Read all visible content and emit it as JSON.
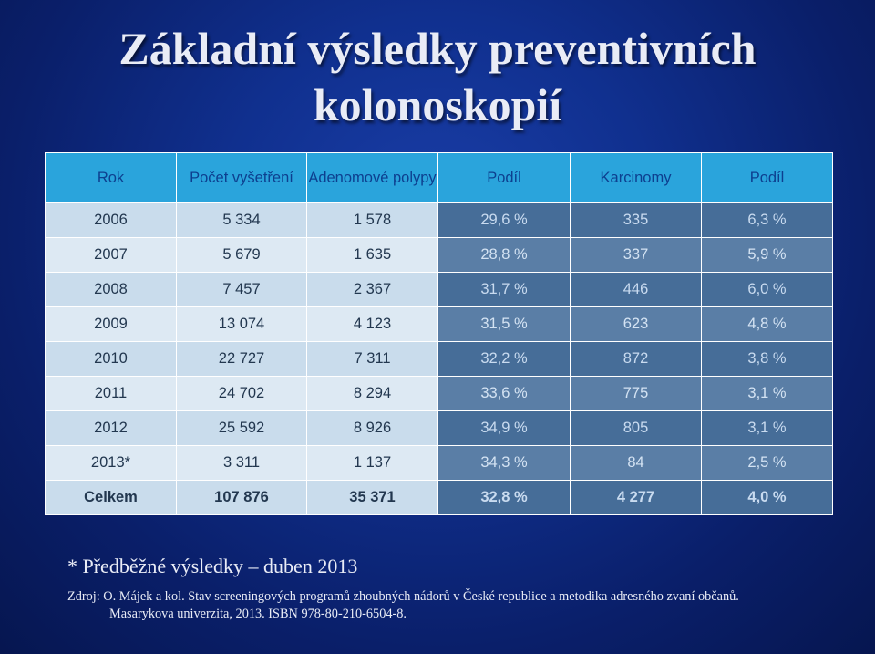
{
  "title": {
    "line1": "Základní výsledky preventivních",
    "line2": "kolonoskopií"
  },
  "table": {
    "headers": [
      "Rok",
      "Počet vyšetření",
      "Adenomové polypy",
      "Podíl",
      "Karcinomy",
      "Podíl"
    ],
    "rows": [
      [
        "2006",
        "5 334",
        "1 578",
        "29,6 %",
        "335",
        "6,3 %"
      ],
      [
        "2007",
        "5 679",
        "1 635",
        "28,8 %",
        "337",
        "5,9 %"
      ],
      [
        "2008",
        "7 457",
        "2 367",
        "31,7 %",
        "446",
        "6,0 %"
      ],
      [
        "2009",
        "13 074",
        "4 123",
        "31,5 %",
        "623",
        "4,8 %"
      ],
      [
        "2010",
        "22 727",
        "7 311",
        "32,2 %",
        "872",
        "3,8 %"
      ],
      [
        "2011",
        "24 702",
        "8 294",
        "33,6 %",
        "775",
        "3,1 %"
      ],
      [
        "2012",
        "25 592",
        "8 926",
        "34,9 %",
        "805",
        "3,1 %"
      ],
      [
        "2013*",
        "3 311",
        "1 137",
        "34,3 %",
        "84",
        "2,5 %"
      ],
      [
        "Celkem",
        "107 876",
        "35 371",
        "32,8 %",
        "4 277",
        "4,0 %"
      ]
    ]
  },
  "footnote": "* Předběžné výsledky – duben 2013",
  "source": {
    "line1": "Zdroj: O. Májek a kol. Stav screeningových programů zhoubných nádorů v České republice a metodika adresného zvaní občanů.",
    "line2": "Masarykova univerzita, 2013. ISBN 978-80-210-6504-8."
  }
}
